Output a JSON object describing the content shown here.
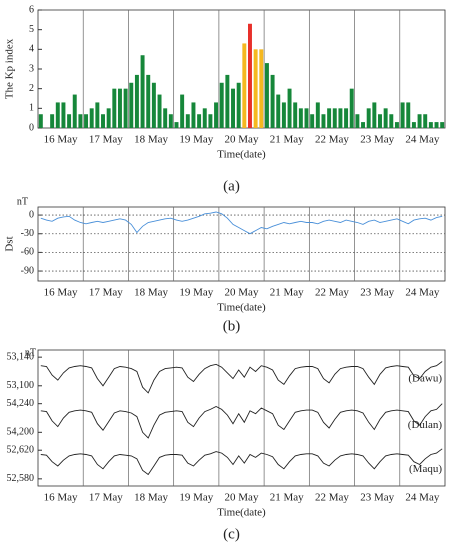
{
  "chart_data": [
    {
      "type": "bar",
      "caption": "(a)",
      "ylabel": "The Kp index",
      "xlabel": "Time(date)",
      "day_labels": [
        "16 May",
        "17 May",
        "18 May",
        "19 May",
        "20 May",
        "21 May",
        "22 May",
        "23 May",
        "24 May"
      ],
      "ylim": [
        0,
        6
      ],
      "yticks": [
        0,
        1,
        2,
        3,
        4,
        5,
        6
      ],
      "values": [
        0.7,
        0,
        0.7,
        1.3,
        1.3,
        0.7,
        1.7,
        0.7,
        0.7,
        1.0,
        1.3,
        0.7,
        1.0,
        2.0,
        2.0,
        2.0,
        2.3,
        2.7,
        3.7,
        2.7,
        2.3,
        1.7,
        1.0,
        0.7,
        0.3,
        1.7,
        0.7,
        1.3,
        0.7,
        1.0,
        0.7,
        1.3,
        2.3,
        2.7,
        2.0,
        2.3,
        4.3,
        5.3,
        4.0,
        4.0,
        3.3,
        2.7,
        1.7,
        1.3,
        2.0,
        1.3,
        1.0,
        1.0,
        0.7,
        1.3,
        0.7,
        1.0,
        1.0,
        1.0,
        1.0,
        2.0,
        0.7,
        0.3,
        1.0,
        1.3,
        0.7,
        1.0,
        0.7,
        0.3,
        1.3,
        1.3,
        0.3,
        0.7,
        0.7,
        0.3,
        0.3,
        0.3
      ],
      "colors": [
        "#16873a",
        "#16873a",
        "#16873a",
        "#16873a",
        "#16873a",
        "#16873a",
        "#16873a",
        "#16873a",
        "#16873a",
        "#16873a",
        "#16873a",
        "#16873a",
        "#16873a",
        "#16873a",
        "#16873a",
        "#16873a",
        "#16873a",
        "#16873a",
        "#16873a",
        "#16873a",
        "#16873a",
        "#16873a",
        "#16873a",
        "#16873a",
        "#16873a",
        "#16873a",
        "#16873a",
        "#16873a",
        "#16873a",
        "#16873a",
        "#16873a",
        "#16873a",
        "#16873a",
        "#16873a",
        "#16873a",
        "#16873a",
        "#f5b820",
        "#e8302a",
        "#f5b820",
        "#f5b820",
        "#16873a",
        "#16873a",
        "#16873a",
        "#16873a",
        "#16873a",
        "#16873a",
        "#16873a",
        "#16873a",
        "#16873a",
        "#16873a",
        "#16873a",
        "#16873a",
        "#16873a",
        "#16873a",
        "#16873a",
        "#16873a",
        "#16873a",
        "#16873a",
        "#16873a",
        "#16873a",
        "#16873a",
        "#16873a",
        "#16873a",
        "#16873a",
        "#16873a",
        "#16873a",
        "#16873a",
        "#16873a",
        "#16873a",
        "#16873a",
        "#16873a",
        "#16873a"
      ]
    },
    {
      "type": "line",
      "caption": "(b)",
      "ylabel": "Dst",
      "unit": "nT",
      "xlabel": "Time(date)",
      "day_labels": [
        "16 May",
        "17 May",
        "18 May",
        "19 May",
        "20 May",
        "21 May",
        "22 May",
        "23 May",
        "24 May"
      ],
      "ylim": [
        -106,
        13
      ],
      "yticks": [
        0,
        -30,
        -60,
        -90
      ],
      "grid": true,
      "color": "#4a90d9",
      "values": [
        -5,
        -8,
        -10,
        -5,
        -3,
        -2,
        -8,
        -12,
        -14,
        -12,
        -10,
        -12,
        -10,
        -8,
        -6,
        -8,
        -15,
        -28,
        -18,
        -12,
        -10,
        -8,
        -6,
        -5,
        -8,
        -10,
        -8,
        -5,
        -2,
        2,
        3,
        5,
        2,
        -5,
        -15,
        -20,
        -25,
        -30,
        -25,
        -20,
        -22,
        -18,
        -15,
        -12,
        -14,
        -12,
        -10,
        -12,
        -12,
        -14,
        -10,
        -8,
        -10,
        -12,
        -8,
        -10,
        -12,
        -15,
        -10,
        -8,
        -12,
        -10,
        -8,
        -6,
        -10,
        -14,
        -8,
        -6,
        -5,
        -8,
        -4,
        -2
      ]
    },
    {
      "type": "line",
      "caption": "(c)",
      "unit": "nT",
      "xlabel": "Time(date)",
      "day_labels": [
        "16 May",
        "17 May",
        "18 May",
        "19 May",
        "20 May",
        "21 May",
        "22 May",
        "23 May",
        "24 May"
      ],
      "color": "#222222",
      "panels": [
        {
          "name": "(Dawu)",
          "ylim": [
            53085,
            53150
          ],
          "yticks": [
            {
              "value": 53140,
              "label": "53,140"
            },
            {
              "value": 53100,
              "label": "53,100"
            }
          ],
          "values": [
            53128,
            53127,
            53115,
            53108,
            53118,
            53125,
            53127,
            53128,
            53127,
            53125,
            53110,
            53100,
            53112,
            53124,
            53127,
            53126,
            53124,
            53120,
            53098,
            53090,
            53108,
            53120,
            53124,
            53125,
            53126,
            53125,
            53112,
            53106,
            53116,
            53124,
            53128,
            53130,
            53126,
            53118,
            53110,
            53122,
            53112,
            53126,
            53120,
            53128,
            53126,
            53122,
            53108,
            53102,
            53114,
            53124,
            53126,
            53127,
            53127,
            53124,
            53110,
            53104,
            53116,
            53124,
            53126,
            53127,
            53127,
            53124,
            53112,
            53102,
            53116,
            53125,
            53127,
            53128,
            53127,
            53126,
            53114,
            53110,
            53120,
            53126,
            53128,
            53134
          ]
        },
        {
          "name": "(Dulan)",
          "ylim": [
            54185,
            54250
          ],
          "yticks": [
            {
              "value": 54240,
              "label": "54,240"
            },
            {
              "value": 54200,
              "label": "54,200"
            }
          ],
          "values": [
            54230,
            54229,
            54216,
            54208,
            54220,
            54228,
            54230,
            54231,
            54230,
            54228,
            54212,
            54203,
            54215,
            54227,
            54230,
            54229,
            54227,
            54222,
            54200,
            54192,
            54210,
            54224,
            54228,
            54229,
            54230,
            54229,
            54214,
            54208,
            54220,
            54229,
            54232,
            54236,
            54232,
            54224,
            54212,
            54226,
            54214,
            54230,
            54226,
            54234,
            54230,
            54226,
            54210,
            54204,
            54216,
            54228,
            54230,
            54231,
            54231,
            54228,
            54214,
            54206,
            54218,
            54228,
            54230,
            54231,
            54230,
            54227,
            54214,
            54204,
            54218,
            54228,
            54230,
            54231,
            54230,
            54229,
            54216,
            54210,
            54222,
            54230,
            54232,
            54240
          ]
        },
        {
          "name": "(Maqu)",
          "ylim": [
            52570,
            52630
          ],
          "yticks": [
            {
              "value": 52620,
              "label": "52,620"
            },
            {
              "value": 52580,
              "label": "52,580"
            }
          ],
          "values": [
            52614,
            52613,
            52604,
            52598,
            52606,
            52612,
            52614,
            52615,
            52614,
            52612,
            52600,
            52594,
            52604,
            52612,
            52614,
            52613,
            52612,
            52608,
            52592,
            52586,
            52598,
            52610,
            52613,
            52614,
            52614,
            52613,
            52602,
            52598,
            52606,
            52613,
            52615,
            52618,
            52616,
            52610,
            52600,
            52612,
            52602,
            52614,
            52610,
            52616,
            52614,
            52611,
            52600,
            52594,
            52604,
            52612,
            52614,
            52615,
            52615,
            52612,
            52602,
            52598,
            52606,
            52612,
            52614,
            52615,
            52614,
            52612,
            52602,
            52594,
            52604,
            52612,
            52614,
            52615,
            52614,
            52613,
            52604,
            52600,
            52608,
            52614,
            52616,
            52622
          ]
        }
      ]
    }
  ]
}
